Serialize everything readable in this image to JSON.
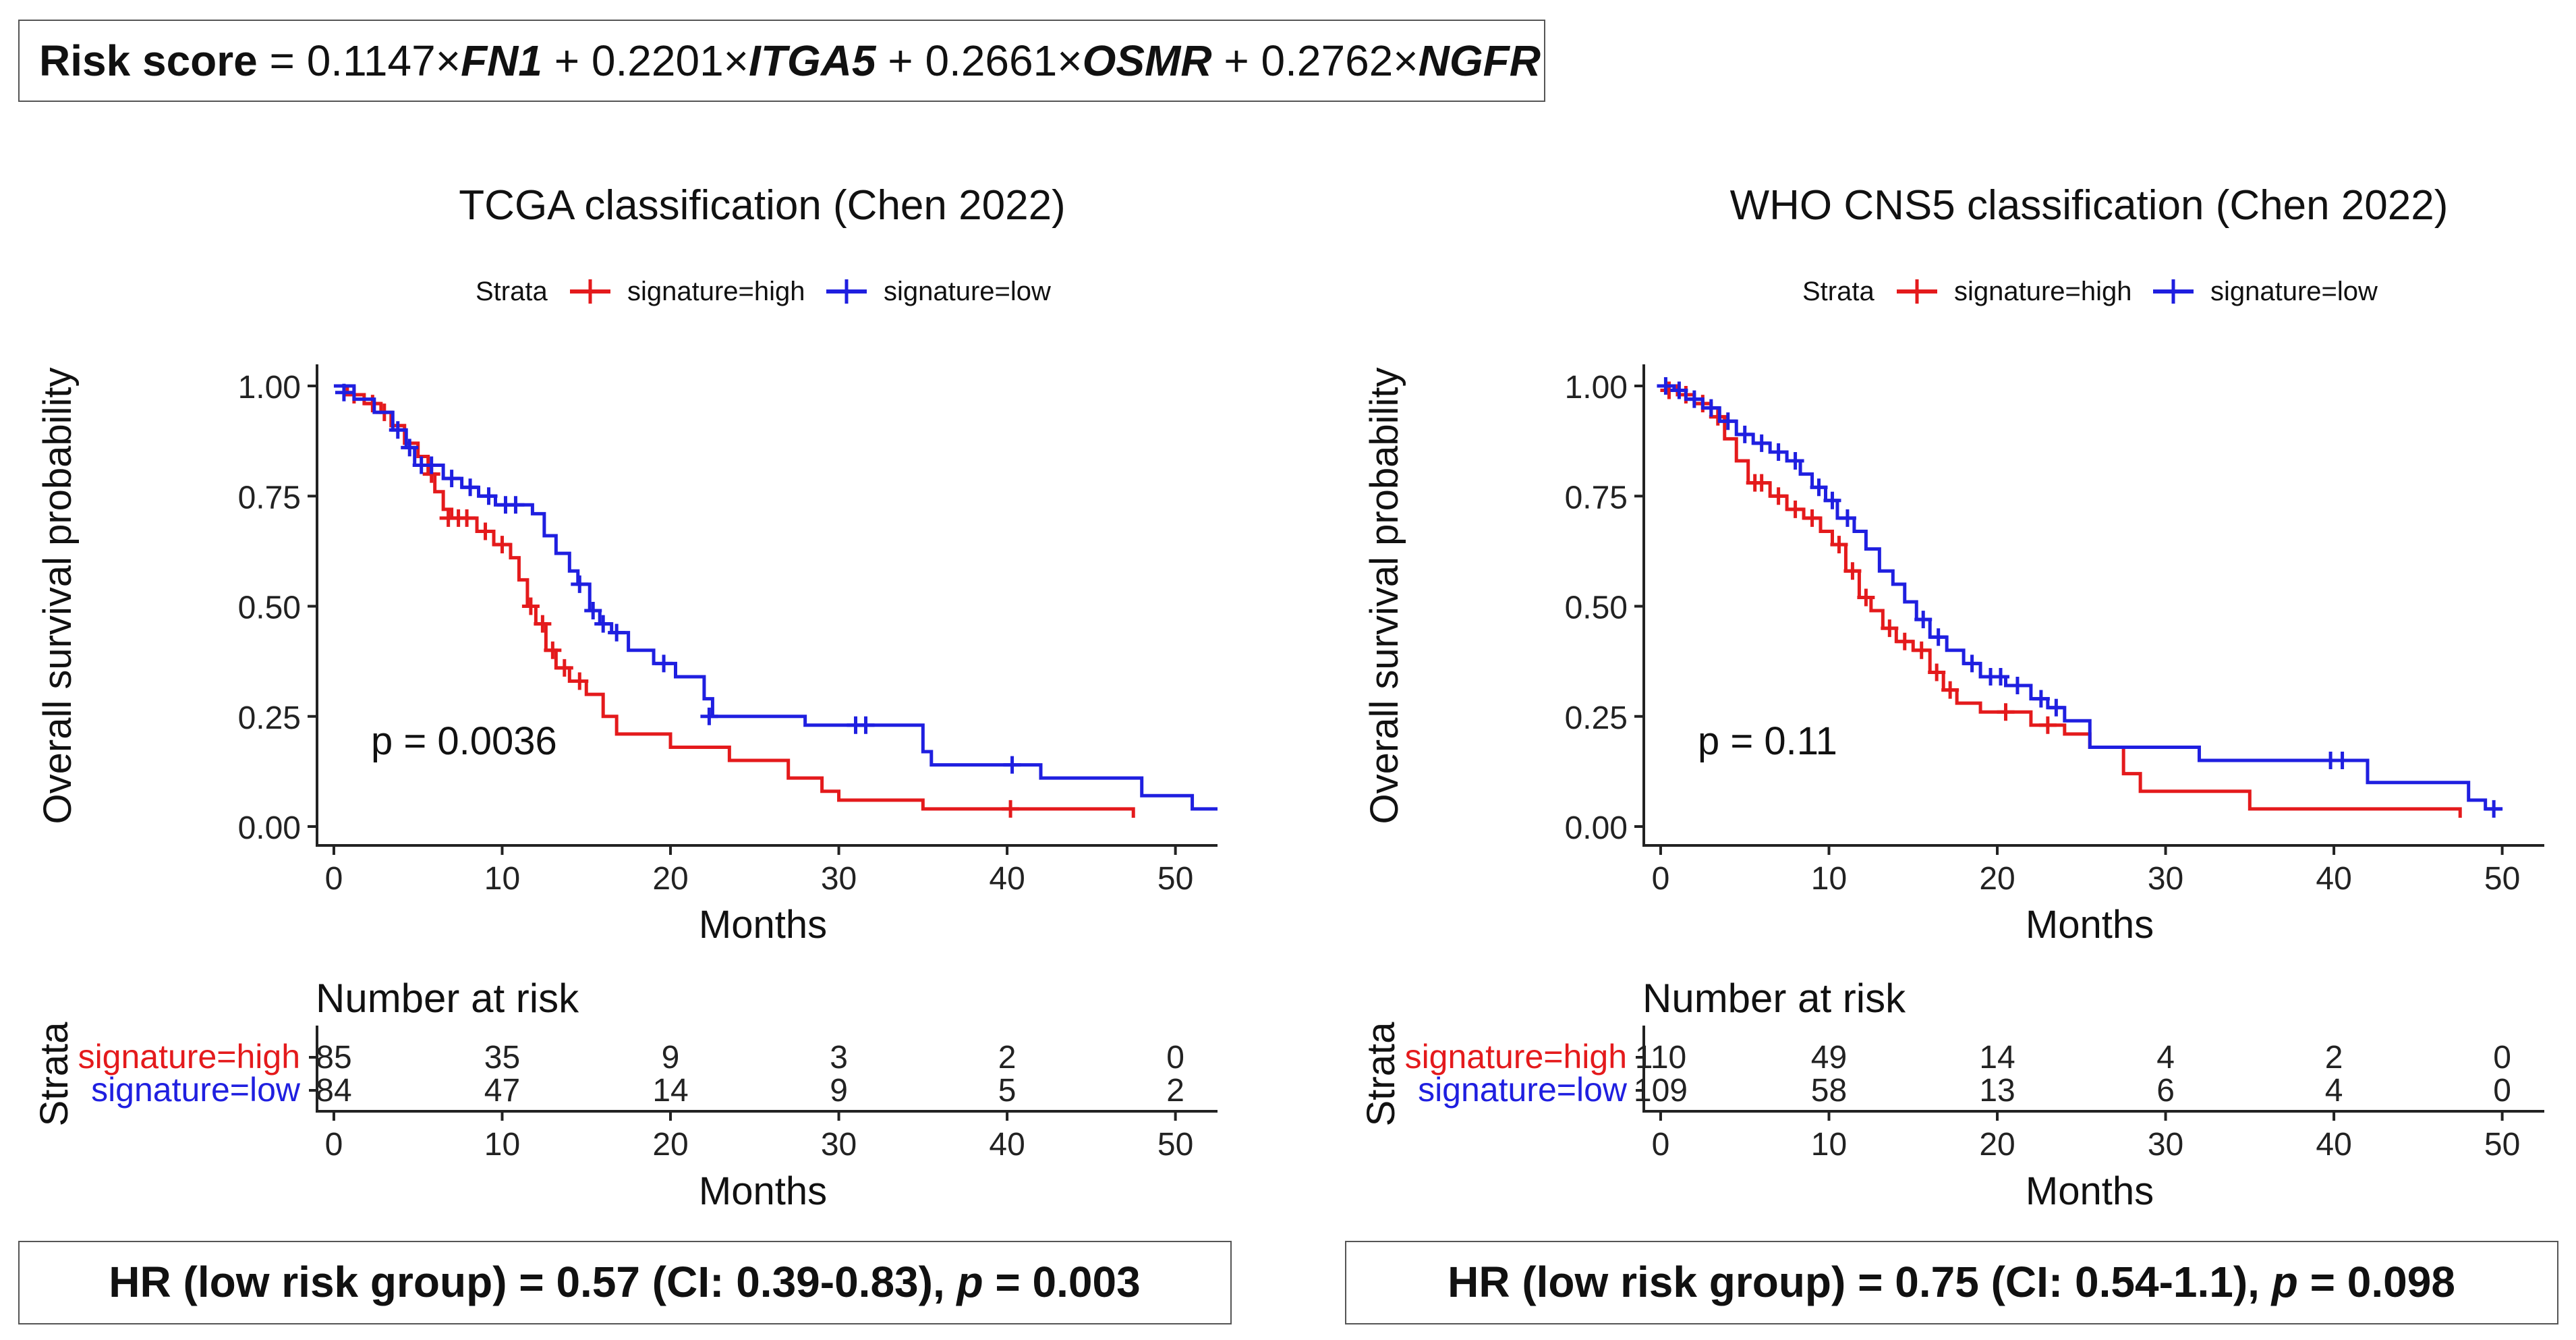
{
  "formula": {
    "label": "Risk score",
    "parts": [
      {
        "t": " = 0.1147×",
        "b": false,
        "i": false
      },
      {
        "t": "FN1",
        "b": true,
        "i": true
      },
      {
        "t": " + 0.2201×",
        "b": false,
        "i": false
      },
      {
        "t": "ITGA5",
        "b": true,
        "i": true
      },
      {
        "t": " + 0.2661×",
        "b": false,
        "i": false
      },
      {
        "t": "OSMR",
        "b": true,
        "i": true
      },
      {
        "t": " + 0.2762×",
        "b": false,
        "i": false
      },
      {
        "t": "NGFR",
        "b": true,
        "i": true
      }
    ]
  },
  "colors": {
    "high": "#e41a1c",
    "low": "#1f1fe0",
    "axis": "#222222"
  },
  "chart_data": [
    {
      "type": "line",
      "title": "TCGA classification (Chen 2022)",
      "legend_title": "Strata",
      "legend_position": "top",
      "xlabel": "Months",
      "ylabel": "Overall survival probability",
      "xlim": [
        -1,
        52.5
      ],
      "ylim": [
        0,
        1
      ],
      "xticks": [
        0,
        10,
        20,
        30,
        40,
        50
      ],
      "xtick_labels": [
        "0",
        "10",
        "20",
        "30",
        "40",
        "50"
      ],
      "yticks": [
        0,
        0.25,
        0.5,
        0.75,
        1
      ],
      "ytick_labels": [
        "0.00",
        "0.25",
        "0.50",
        "0.75",
        "1.00"
      ],
      "pvalue": "p = 0.0036",
      "series": [
        {
          "name": "signature=high",
          "color_key": "high",
          "end": 47.5,
          "steps": [
            [
              0,
              1.0
            ],
            [
              0.8,
              0.98
            ],
            [
              1.8,
              0.96
            ],
            [
              2.8,
              0.94
            ],
            [
              3.4,
              0.91
            ],
            [
              4.2,
              0.87
            ],
            [
              5.0,
              0.84
            ],
            [
              5.6,
              0.8
            ],
            [
              6.0,
              0.76
            ],
            [
              6.5,
              0.72
            ],
            [
              7.0,
              0.7
            ],
            [
              8.5,
              0.67
            ],
            [
              9.5,
              0.64
            ],
            [
              10.5,
              0.61
            ],
            [
              11.0,
              0.56
            ],
            [
              11.5,
              0.5
            ],
            [
              12.0,
              0.46
            ],
            [
              12.6,
              0.4
            ],
            [
              13.2,
              0.36
            ],
            [
              14.0,
              0.33
            ],
            [
              15.0,
              0.3
            ],
            [
              16.0,
              0.25
            ],
            [
              16.8,
              0.21
            ],
            [
              20.0,
              0.18
            ],
            [
              23.5,
              0.15
            ],
            [
              27.0,
              0.11
            ],
            [
              29.0,
              0.08
            ],
            [
              30.0,
              0.06
            ],
            [
              35.0,
              0.04
            ],
            [
              47.5,
              0.02
            ]
          ],
          "censor": [
            [
              1.2,
              0.98
            ],
            [
              2.3,
              0.96
            ],
            [
              3.0,
              0.94
            ],
            [
              5.8,
              0.8
            ],
            [
              6.8,
              0.7
            ],
            [
              7.4,
              0.7
            ],
            [
              7.9,
              0.7
            ],
            [
              9.0,
              0.67
            ],
            [
              10.0,
              0.64
            ],
            [
              11.7,
              0.5
            ],
            [
              12.4,
              0.46
            ],
            [
              13.0,
              0.4
            ],
            [
              13.7,
              0.36
            ],
            [
              14.6,
              0.33
            ],
            [
              40.2,
              0.04
            ]
          ]
        },
        {
          "name": "signature=low",
          "color_key": "low",
          "end": 52.5,
          "steps": [
            [
              0,
              1.0
            ],
            [
              1.2,
              0.97
            ],
            [
              2.4,
              0.94
            ],
            [
              3.5,
              0.9
            ],
            [
              4.3,
              0.86
            ],
            [
              4.8,
              0.82
            ],
            [
              6.5,
              0.79
            ],
            [
              7.6,
              0.77
            ],
            [
              8.6,
              0.75
            ],
            [
              9.6,
              0.73
            ],
            [
              11.8,
              0.71
            ],
            [
              12.5,
              0.66
            ],
            [
              13.2,
              0.62
            ],
            [
              14.0,
              0.58
            ],
            [
              14.5,
              0.55
            ],
            [
              15.2,
              0.49
            ],
            [
              15.8,
              0.46
            ],
            [
              16.5,
              0.44
            ],
            [
              17.5,
              0.4
            ],
            [
              19.0,
              0.37
            ],
            [
              20.3,
              0.34
            ],
            [
              22.0,
              0.29
            ],
            [
              22.5,
              0.25
            ],
            [
              28.0,
              0.23
            ],
            [
              35.0,
              0.17
            ],
            [
              35.5,
              0.14
            ],
            [
              42.0,
              0.11
            ],
            [
              48.0,
              0.07
            ],
            [
              51.0,
              0.04
            ]
          ],
          "censor": [
            [
              0.6,
              0.985
            ],
            [
              3.8,
              0.9
            ],
            [
              4.5,
              0.86
            ],
            [
              5.2,
              0.82
            ],
            [
              5.8,
              0.82
            ],
            [
              7.0,
              0.79
            ],
            [
              8.1,
              0.77
            ],
            [
              9.2,
              0.75
            ],
            [
              10.2,
              0.73
            ],
            [
              10.8,
              0.73
            ],
            [
              14.6,
              0.55
            ],
            [
              15.4,
              0.49
            ],
            [
              16.0,
              0.46
            ],
            [
              16.8,
              0.44
            ],
            [
              19.6,
              0.37
            ],
            [
              22.3,
              0.25
            ],
            [
              31.0,
              0.23
            ],
            [
              31.6,
              0.23
            ],
            [
              40.3,
              0.14
            ]
          ]
        }
      ],
      "risk_table": {
        "title": "Number at risk",
        "ylabel": "Strata",
        "xlabel": "Months",
        "rows": [
          {
            "name": "signature=high",
            "color_key": "high",
            "values": [
              "85",
              "35",
              "9",
              "3",
              "2",
              "0"
            ]
          },
          {
            "name": "signature=low",
            "color_key": "low",
            "values": [
              "84",
              "47",
              "14",
              "9",
              "5",
              "2"
            ]
          }
        ]
      },
      "hr_box": {
        "prefix": "HR (low risk group) = 0.57 (CI: 0.39-0.83), ",
        "p_label": "p",
        "suffix": " = 0.003"
      }
    },
    {
      "type": "line",
      "title": "WHO CNS5 classification (Chen 2022)",
      "legend_title": "Strata",
      "legend_position": "top",
      "xlabel": "Months",
      "ylabel": "Overall survival probability",
      "xlim": [
        -1,
        52.5
      ],
      "ylim": [
        0,
        1
      ],
      "xticks": [
        0,
        10,
        20,
        30,
        40,
        50
      ],
      "xtick_labels": [
        "0",
        "10",
        "20",
        "30",
        "40",
        "50"
      ],
      "yticks": [
        0,
        0.25,
        0.5,
        0.75,
        1
      ],
      "ytick_labels": [
        "0.00",
        "0.25",
        "0.50",
        "0.75",
        "1.00"
      ],
      "pvalue": "p = 0.11",
      "series": [
        {
          "name": "signature=high",
          "color_key": "high",
          "end": 47.5,
          "steps": [
            [
              0,
              1.0
            ],
            [
              1.0,
              0.98
            ],
            [
              2.0,
              0.96
            ],
            [
              3.0,
              0.93
            ],
            [
              3.8,
              0.88
            ],
            [
              4.5,
              0.83
            ],
            [
              5.2,
              0.78
            ],
            [
              6.5,
              0.75
            ],
            [
              7.5,
              0.72
            ],
            [
              8.5,
              0.7
            ],
            [
              9.5,
              0.67
            ],
            [
              10.2,
              0.64
            ],
            [
              11.0,
              0.58
            ],
            [
              11.8,
              0.52
            ],
            [
              12.5,
              0.49
            ],
            [
              13.2,
              0.45
            ],
            [
              14.0,
              0.42
            ],
            [
              15.0,
              0.4
            ],
            [
              16.0,
              0.35
            ],
            [
              16.8,
              0.31
            ],
            [
              17.6,
              0.28
            ],
            [
              19.0,
              0.26
            ],
            [
              22.0,
              0.23
            ],
            [
              24.0,
              0.21
            ],
            [
              25.5,
              0.18
            ],
            [
              27.5,
              0.12
            ],
            [
              28.5,
              0.08
            ],
            [
              35.0,
              0.04
            ],
            [
              47.5,
              0.02
            ]
          ],
          "censor": [
            [
              0.5,
              0.99
            ],
            [
              1.5,
              0.98
            ],
            [
              2.5,
              0.96
            ],
            [
              3.4,
              0.93
            ],
            [
              5.6,
              0.78
            ],
            [
              6.0,
              0.78
            ],
            [
              7.0,
              0.75
            ],
            [
              8.0,
              0.72
            ],
            [
              9.0,
              0.7
            ],
            [
              10.6,
              0.64
            ],
            [
              11.4,
              0.58
            ],
            [
              12.2,
              0.52
            ],
            [
              13.6,
              0.45
            ],
            [
              14.5,
              0.42
            ],
            [
              15.5,
              0.4
            ],
            [
              16.4,
              0.35
            ],
            [
              17.2,
              0.31
            ],
            [
              20.5,
              0.26
            ],
            [
              23.0,
              0.23
            ]
          ]
        },
        {
          "name": "signature=low",
          "color_key": "low",
          "end": 50,
          "steps": [
            [
              0,
              1.0
            ],
            [
              0.8,
              0.99
            ],
            [
              1.5,
              0.97
            ],
            [
              2.5,
              0.95
            ],
            [
              3.5,
              0.92
            ],
            [
              4.5,
              0.89
            ],
            [
              5.5,
              0.87
            ],
            [
              6.5,
              0.85
            ],
            [
              7.5,
              0.83
            ],
            [
              8.3,
              0.8
            ],
            [
              9.0,
              0.77
            ],
            [
              9.8,
              0.74
            ],
            [
              10.5,
              0.7
            ],
            [
              11.5,
              0.67
            ],
            [
              12.2,
              0.63
            ],
            [
              13.0,
              0.58
            ],
            [
              13.8,
              0.55
            ],
            [
              14.5,
              0.51
            ],
            [
              15.2,
              0.47
            ],
            [
              16.0,
              0.43
            ],
            [
              17.0,
              0.4
            ],
            [
              18.0,
              0.37
            ],
            [
              19.0,
              0.34
            ],
            [
              20.5,
              0.32
            ],
            [
              22.0,
              0.29
            ],
            [
              23.0,
              0.27
            ],
            [
              24.0,
              0.24
            ],
            [
              25.5,
              0.18
            ],
            [
              32.0,
              0.15
            ],
            [
              42.0,
              0.1
            ],
            [
              48.0,
              0.06
            ],
            [
              49.0,
              0.04
            ]
          ],
          "censor": [
            [
              0.3,
              1.0
            ],
            [
              1.1,
              0.99
            ],
            [
              2.0,
              0.97
            ],
            [
              3.0,
              0.95
            ],
            [
              4.0,
              0.92
            ],
            [
              5.0,
              0.89
            ],
            [
              6.0,
              0.87
            ],
            [
              7.0,
              0.85
            ],
            [
              8.0,
              0.83
            ],
            [
              9.4,
              0.77
            ],
            [
              10.2,
              0.74
            ],
            [
              11.1,
              0.7
            ],
            [
              15.6,
              0.47
            ],
            [
              16.5,
              0.43
            ],
            [
              18.5,
              0.37
            ],
            [
              19.6,
              0.34
            ],
            [
              20.2,
              0.34
            ],
            [
              21.2,
              0.32
            ],
            [
              22.6,
              0.29
            ],
            [
              23.5,
              0.27
            ],
            [
              39.8,
              0.15
            ],
            [
              40.5,
              0.15
            ],
            [
              49.5,
              0.04
            ]
          ]
        }
      ],
      "risk_table": {
        "title": "Number at risk",
        "ylabel": "Strata",
        "xlabel": "Months",
        "rows": [
          {
            "name": "signature=high",
            "color_key": "high",
            "values": [
              "110",
              "49",
              "14",
              "4",
              "2",
              "0"
            ]
          },
          {
            "name": "signature=low",
            "color_key": "low",
            "values": [
              "109",
              "58",
              "13",
              "6",
              "4",
              "0"
            ]
          }
        ]
      },
      "hr_box": {
        "prefix": "HR (low risk group) = 0.75 (CI: 0.54-1.1), ",
        "p_label": "p",
        "suffix": " = 0.098"
      }
    }
  ]
}
